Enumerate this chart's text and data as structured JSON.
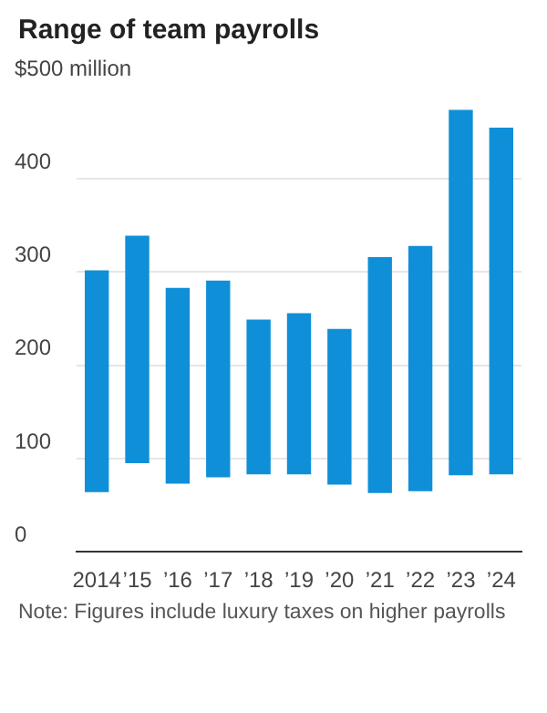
{
  "chart_data": {
    "type": "bar",
    "title": "Range of team payrolls",
    "categories": [
      "2014",
      "’15",
      "’16",
      "’17",
      "’18",
      "’19",
      "’20",
      "’21",
      "’22",
      "’23",
      "’24"
    ],
    "base": [
      64,
      95,
      73,
      80,
      83,
      83,
      72,
      63,
      65,
      82,
      83
    ],
    "values": [
      238,
      244,
      210,
      211,
      166,
      173,
      167,
      253,
      263,
      392,
      372
    ],
    "color": "#0f8fd8",
    "ylim": [
      0,
      500
    ],
    "yticks": [
      0,
      100,
      200,
      300,
      400,
      {
        "value": 500,
        "label": "$500 million"
      }
    ],
    "grid": "y",
    "annotations": [
      "Note: Figures include luxury taxes on higher payrolls"
    ]
  }
}
